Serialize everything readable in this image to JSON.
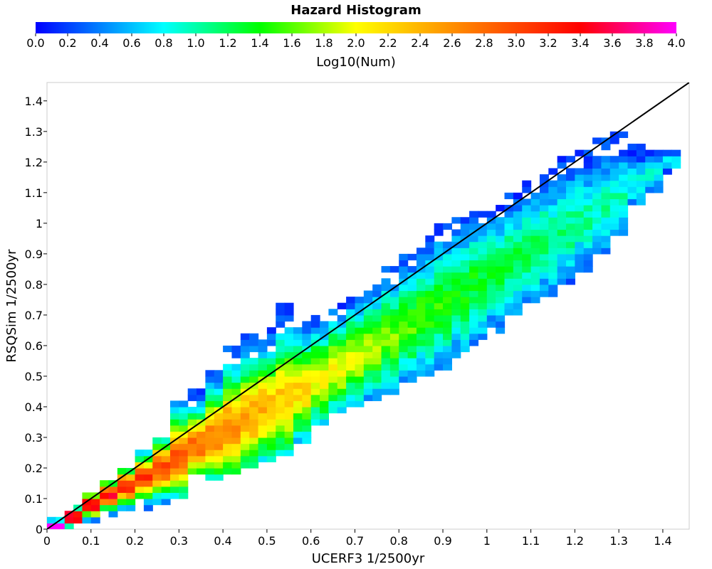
{
  "chart_data": {
    "type": "heatmap",
    "title": "Hazard Histogram",
    "colorbar": {
      "label": "Log10(Num)",
      "range": [
        0,
        4
      ],
      "tick_labels": [
        "0.0",
        "0.2",
        "0.4",
        "0.6",
        "0.8",
        "1.0",
        "1.2",
        "1.4",
        "1.6",
        "1.8",
        "2.0",
        "2.2",
        "2.4",
        "2.6",
        "2.8",
        "3.0",
        "3.2",
        "3.4",
        "3.6",
        "3.8",
        "4.0"
      ],
      "colormap": [
        "#0000ff",
        "#00ffff",
        "#00ff00",
        "#ffff00",
        "#ff8000",
        "#ff0000",
        "#ff00ff"
      ]
    },
    "xlabel": "UCERF3 1/2500yr",
    "ylabel": "RSQSim 1/2500yr",
    "xlim": [
      0,
      1.46
    ],
    "ylim": [
      0,
      1.46
    ],
    "x_tick_labels": [
      "0",
      "0.1",
      "0.2",
      "0.3",
      "0.4",
      "0.5",
      "0.6",
      "0.7",
      "0.8",
      "0.9",
      "1",
      "1.1",
      "1.2",
      "1.3",
      "1.4"
    ],
    "y_tick_labels": [
      "0",
      "0.1",
      "0.2",
      "0.3",
      "0.4",
      "0.5",
      "0.6",
      "0.7",
      "0.8",
      "0.9",
      "1",
      "1.1",
      "1.2",
      "1.3",
      "1.4"
    ],
    "bin_size": 0.02,
    "reference_line": {
      "x": [
        0,
        1.46
      ],
      "y": [
        0,
        1.46
      ],
      "color": "#000000"
    },
    "grid": false,
    "band": [
      {
        "x": 0.02,
        "y_min": 0.0,
        "y_max": 0.03,
        "center": 0.01
      },
      {
        "x": 0.06,
        "y_min": 0.0,
        "y_max": 0.07,
        "center": 0.04
      },
      {
        "x": 0.1,
        "y_min": 0.03,
        "y_max": 0.12,
        "center": 0.08
      },
      {
        "x": 0.14,
        "y_min": 0.05,
        "y_max": 0.16,
        "center": 0.11
      },
      {
        "x": 0.18,
        "y_min": 0.06,
        "y_max": 0.2,
        "center": 0.14
      },
      {
        "x": 0.22,
        "y_min": 0.07,
        "y_max": 0.24,
        "center": 0.17
      },
      {
        "x": 0.26,
        "y_min": 0.08,
        "y_max": 0.3,
        "center": 0.2
      },
      {
        "x": 0.3,
        "y_min": 0.1,
        "y_max": 0.42,
        "center": 0.24
      },
      {
        "x": 0.34,
        "y_min": 0.18,
        "y_max": 0.46,
        "center": 0.275
      },
      {
        "x": 0.38,
        "y_min": 0.17,
        "y_max": 0.52,
        "center": 0.305
      },
      {
        "x": 0.42,
        "y_min": 0.18,
        "y_max": 0.61,
        "center": 0.335
      },
      {
        "x": 0.46,
        "y_min": 0.2,
        "y_max": 0.63,
        "center": 0.365
      },
      {
        "x": 0.5,
        "y_min": 0.22,
        "y_max": 0.65,
        "center": 0.395
      },
      {
        "x": 0.54,
        "y_min": 0.25,
        "y_max": 0.73,
        "center": 0.425
      },
      {
        "x": 0.58,
        "y_min": 0.28,
        "y_max": 0.68,
        "center": 0.455
      },
      {
        "x": 0.62,
        "y_min": 0.35,
        "y_max": 0.7,
        "center": 0.49
      },
      {
        "x": 0.66,
        "y_min": 0.38,
        "y_max": 0.74,
        "center": 0.525
      },
      {
        "x": 0.7,
        "y_min": 0.4,
        "y_max": 0.76,
        "center": 0.56
      },
      {
        "x": 0.74,
        "y_min": 0.42,
        "y_max": 0.8,
        "center": 0.595
      },
      {
        "x": 0.78,
        "y_min": 0.45,
        "y_max": 0.85,
        "center": 0.63
      },
      {
        "x": 0.82,
        "y_min": 0.48,
        "y_max": 0.9,
        "center": 0.665
      },
      {
        "x": 0.86,
        "y_min": 0.5,
        "y_max": 0.96,
        "center": 0.7
      },
      {
        "x": 0.9,
        "y_min": 0.52,
        "y_max": 1.0,
        "center": 0.735
      },
      {
        "x": 0.94,
        "y_min": 0.56,
        "y_max": 1.02,
        "center": 0.77
      },
      {
        "x": 0.98,
        "y_min": 0.6,
        "y_max": 1.04,
        "center": 0.805
      },
      {
        "x": 1.02,
        "y_min": 0.64,
        "y_max": 1.06,
        "center": 0.84
      },
      {
        "x": 1.06,
        "y_min": 0.68,
        "y_max": 1.1,
        "center": 0.875
      },
      {
        "x": 1.1,
        "y_min": 0.72,
        "y_max": 1.14,
        "center": 0.91
      },
      {
        "x": 1.14,
        "y_min": 0.76,
        "y_max": 1.18,
        "center": 0.945
      },
      {
        "x": 1.18,
        "y_min": 0.8,
        "y_max": 1.22,
        "center": 0.98
      },
      {
        "x": 1.22,
        "y_min": 0.84,
        "y_max": 1.24,
        "center": 1.015
      },
      {
        "x": 1.26,
        "y_min": 0.9,
        "y_max": 1.28,
        "center": 1.05
      },
      {
        "x": 1.3,
        "y_min": 0.96,
        "y_max": 1.3,
        "center": 1.085
      },
      {
        "x": 1.34,
        "y_min": 1.06,
        "y_max": 1.26,
        "center": 1.13
      },
      {
        "x": 1.38,
        "y_min": 1.1,
        "y_max": 1.24,
        "center": 1.16
      },
      {
        "x": 1.42,
        "y_min": 1.18,
        "y_max": 1.24,
        "center": 1.2
      }
    ],
    "peak_log10_count": [
      4.0,
      3.9,
      3.6,
      3.4,
      3.3,
      3.1,
      3.0,
      2.9,
      2.8,
      2.7,
      2.6,
      2.5,
      2.4,
      2.3,
      2.2,
      2.1,
      2.0,
      1.9,
      1.8,
      1.7,
      1.6,
      1.5,
      1.45,
      1.4,
      1.35,
      1.3,
      1.25,
      1.2,
      1.15,
      1.1,
      1.05,
      1.0,
      0.95,
      0.9,
      0.85,
      0.8
    ]
  }
}
